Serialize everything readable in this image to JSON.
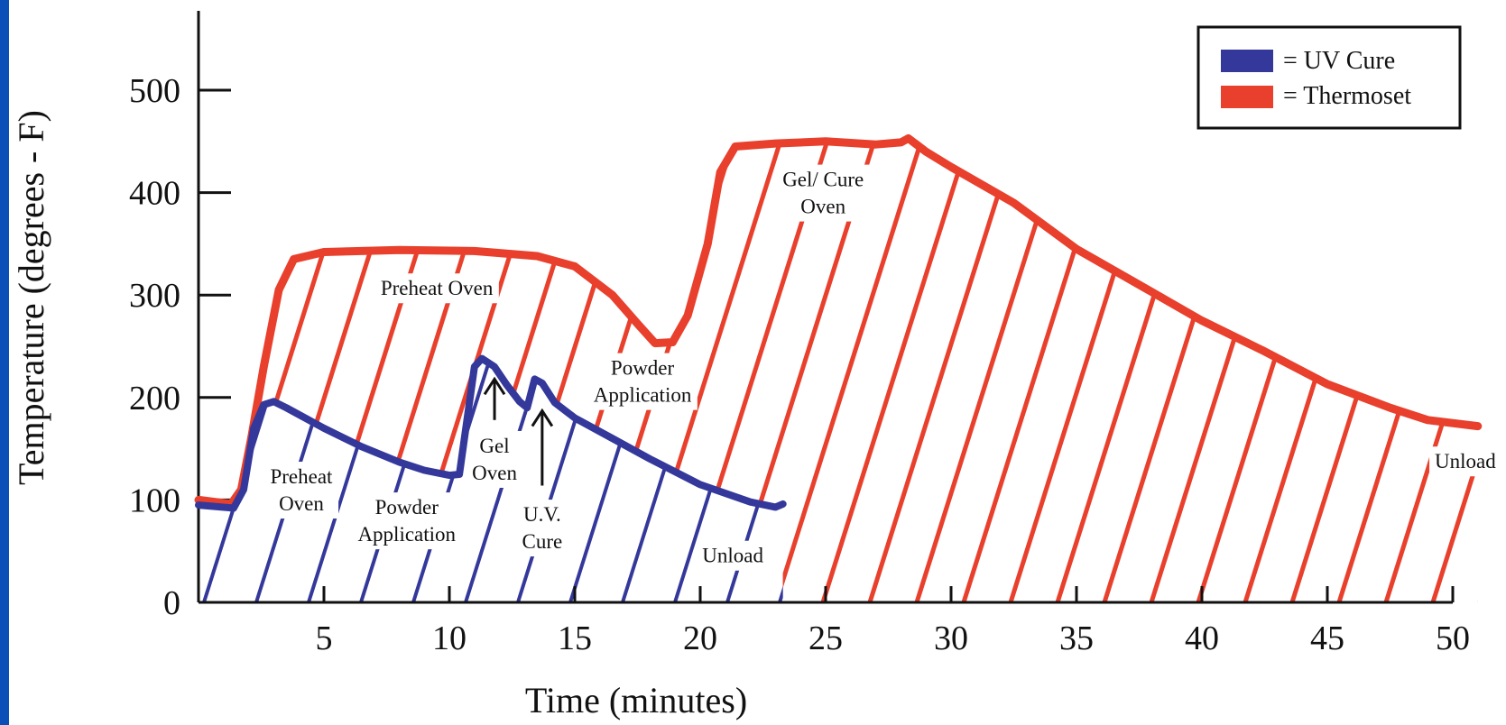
{
  "chart_data": {
    "type": "line",
    "xlabel": "Time (minutes)",
    "ylabel": "Temperature (degrees - F)",
    "xlim": [
      0,
      50
    ],
    "ylim": [
      0,
      500
    ],
    "xticks": [
      5,
      10,
      15,
      20,
      25,
      30,
      35,
      40,
      45,
      50
    ],
    "yticks": [
      0,
      100,
      200,
      300,
      400,
      500
    ],
    "legend": {
      "position": "top-right",
      "items": [
        {
          "label": "= UV Cure",
          "color": "#34389a"
        },
        {
          "label": "= Thermoset",
          "color": "#e8402c"
        }
      ]
    },
    "series": [
      {
        "legend": "UV Cure",
        "color": "#34389a",
        "points": [
          [
            0,
            95
          ],
          [
            1.4,
            92
          ],
          [
            1.8,
            110
          ],
          [
            2.2,
            170
          ],
          [
            2.6,
            193
          ],
          [
            3.0,
            196
          ],
          [
            3.5,
            190
          ],
          [
            5,
            170
          ],
          [
            6.5,
            152
          ],
          [
            8,
            137
          ],
          [
            9,
            129
          ],
          [
            10,
            124
          ],
          [
            10.4,
            125
          ],
          [
            11.0,
            230
          ],
          [
            11.3,
            238
          ],
          [
            11.8,
            230
          ],
          [
            12.3,
            212
          ],
          [
            12.8,
            196
          ],
          [
            13.1,
            190
          ],
          [
            13.4,
            218
          ],
          [
            13.7,
            214
          ],
          [
            14.2,
            195
          ],
          [
            15,
            180
          ],
          [
            16.5,
            160
          ],
          [
            18,
            140
          ],
          [
            20,
            115
          ],
          [
            22,
            98
          ],
          [
            23,
            93
          ],
          [
            23.3,
            96
          ]
        ]
      },
      {
        "legend": "Thermoset",
        "color": "#e8402c",
        "points": [
          [
            0,
            100
          ],
          [
            1.3,
            96
          ],
          [
            1.7,
            110
          ],
          [
            2.1,
            160
          ],
          [
            2.6,
            230
          ],
          [
            3.2,
            305
          ],
          [
            3.8,
            335
          ],
          [
            5,
            342
          ],
          [
            8,
            344
          ],
          [
            11,
            343
          ],
          [
            13.5,
            338
          ],
          [
            15,
            328
          ],
          [
            16.5,
            300
          ],
          [
            17.5,
            272
          ],
          [
            18.2,
            253
          ],
          [
            18.9,
            254
          ],
          [
            19.5,
            280
          ],
          [
            20.3,
            350
          ],
          [
            20.8,
            420
          ],
          [
            21.4,
            445
          ],
          [
            23,
            448
          ],
          [
            25,
            450
          ],
          [
            27,
            447
          ],
          [
            28.0,
            449
          ],
          [
            28.3,
            453
          ],
          [
            29.0,
            440
          ],
          [
            30,
            425
          ],
          [
            32.5,
            390
          ],
          [
            35,
            345
          ],
          [
            37.5,
            310
          ],
          [
            40,
            275
          ],
          [
            42.5,
            245
          ],
          [
            45,
            213
          ],
          [
            47.5,
            190
          ],
          [
            49,
            178
          ],
          [
            51,
            172
          ]
        ]
      }
    ],
    "annotations": [
      {
        "text": [
          "Preheat Oven"
        ],
        "x": 9.5,
        "y": 307
      },
      {
        "text": [
          "Preheat",
          "Oven"
        ],
        "x": 4.1,
        "y": 110
      },
      {
        "text": [
          "Powder",
          "Application"
        ],
        "x": 8.3,
        "y": 80
      },
      {
        "text": [
          "Gel",
          "Oven"
        ],
        "x": 11.8,
        "y": 140
      },
      {
        "text": [
          "U.V.",
          "Cure"
        ],
        "x": 13.7,
        "y": 73
      },
      {
        "text": [
          "Powder",
          "Application"
        ],
        "x": 17.7,
        "y": 216
      },
      {
        "text": [
          "Unload"
        ],
        "x": 21.3,
        "y": 46
      },
      {
        "text": [
          "Gel/ Cure",
          "Oven"
        ],
        "x": 24.9,
        "y": 400
      },
      {
        "text": [
          "Unload"
        ],
        "x": 50.5,
        "y": 138
      }
    ],
    "arrows": [
      {
        "x": 11.8,
        "from": 178,
        "to": 218
      },
      {
        "x": 13.7,
        "from": 114,
        "to": 187
      }
    ]
  }
}
